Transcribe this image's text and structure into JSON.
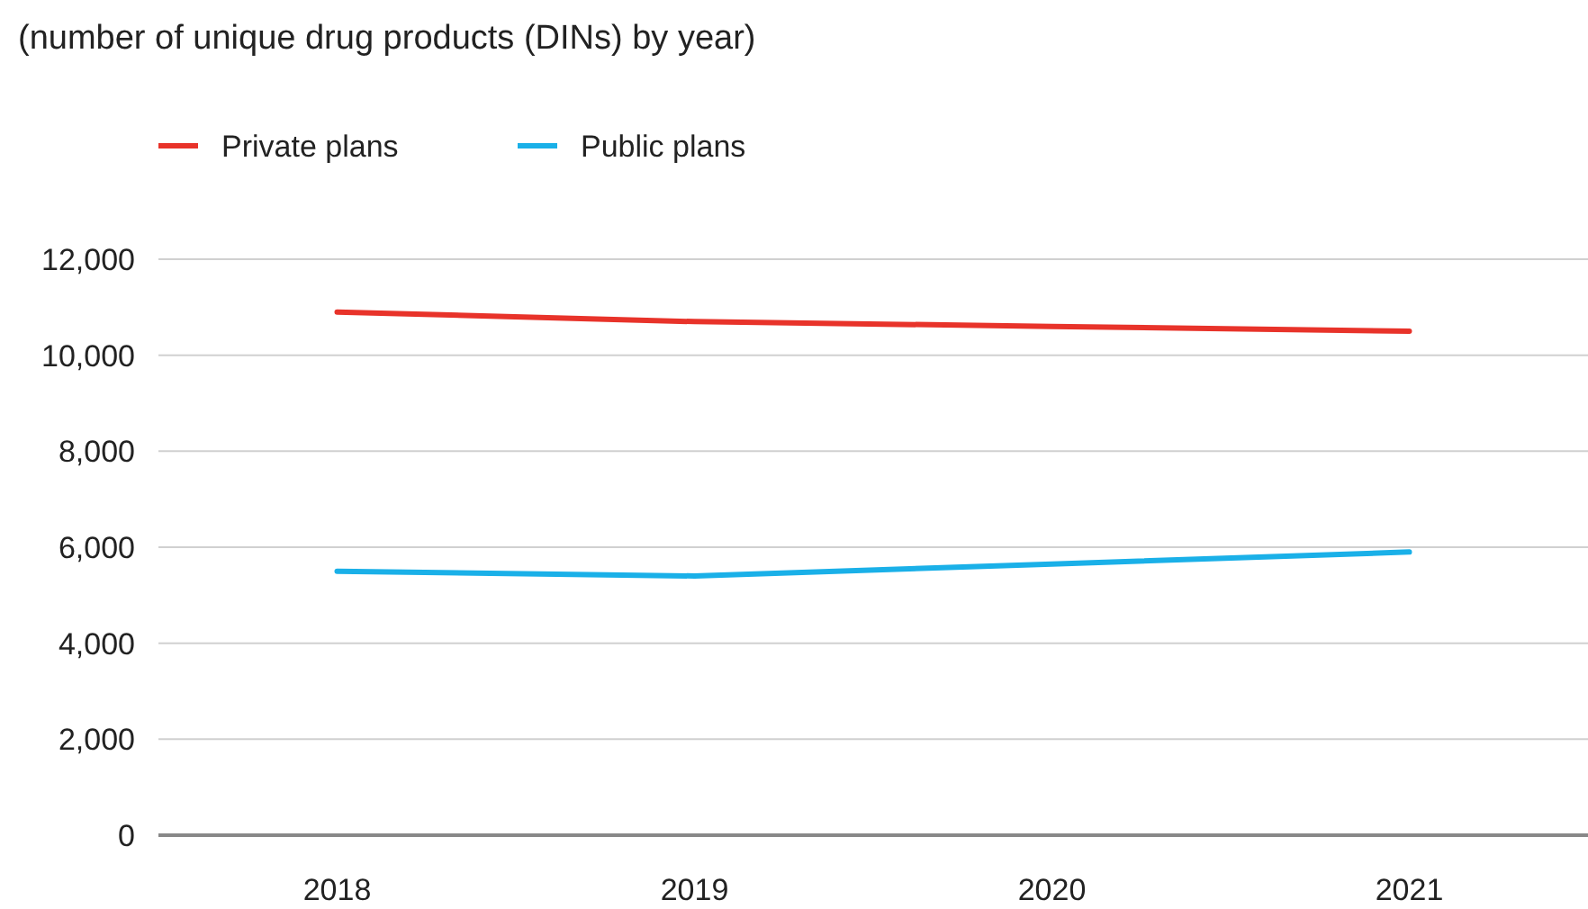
{
  "chart_data": {
    "type": "line",
    "title": "(number of unique drug products (DINs) by year)",
    "categories": [
      "2018",
      "2019",
      "2020",
      "2021"
    ],
    "series": [
      {
        "name": "Private plans",
        "color": "#e8332a",
        "values": [
          10900,
          10700,
          10600,
          10500
        ]
      },
      {
        "name": "Public plans",
        "color": "#1ab0e8",
        "values": [
          5500,
          5400,
          5650,
          5900
        ]
      }
    ],
    "ylim": [
      0,
      12000
    ],
    "yticks": [
      {
        "value": 0,
        "label": "0"
      },
      {
        "value": 2000,
        "label": "2,000"
      },
      {
        "value": 4000,
        "label": "4,000"
      },
      {
        "value": 6000,
        "label": "6,000"
      },
      {
        "value": 8000,
        "label": "8,000"
      },
      {
        "value": 10000,
        "label": "10,000"
      },
      {
        "value": 12000,
        "label": "12,000"
      }
    ],
    "grid": "y",
    "legend": "top left",
    "marker": "none",
    "line_style": "solid"
  }
}
